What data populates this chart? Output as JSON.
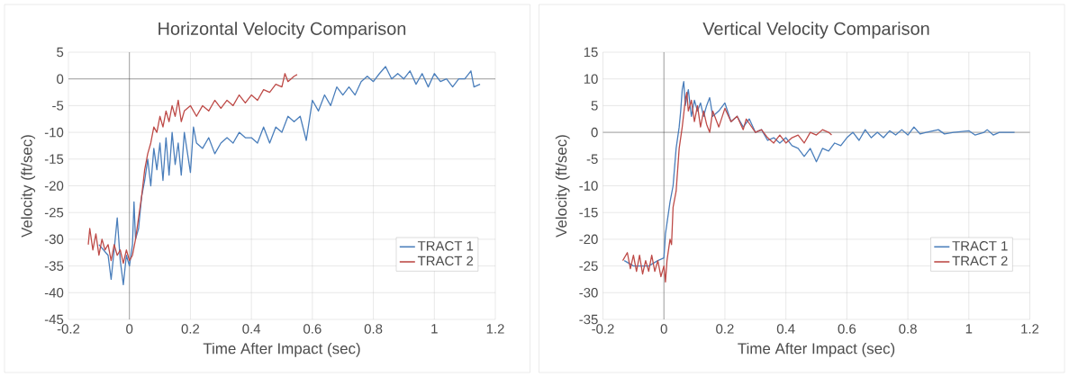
{
  "chart_data": [
    {
      "type": "line",
      "title": "Horizontal Velocity Comparison",
      "xlabel": "Time After Impact (sec)",
      "ylabel": "Velocity (ft/sec)",
      "xlim": [
        -0.2,
        1.2
      ],
      "ylim": [
        -45,
        5
      ],
      "xticks": [
        -0.2,
        0,
        0.2,
        0.4,
        0.6,
        0.8,
        1,
        1.2
      ],
      "yticks": [
        -45,
        -40,
        -35,
        -30,
        -25,
        -20,
        -15,
        -10,
        -5,
        0,
        5
      ],
      "grid": true,
      "legend": "bottom right",
      "marker": "none",
      "line_style": "solid",
      "series": [
        {
          "name": "TRACT 1",
          "color": "#4a7ebb",
          "x": [
            -0.1,
            -0.07,
            -0.06,
            -0.05,
            -0.04,
            -0.03,
            -0.02,
            -0.01,
            0,
            0.01,
            0.015,
            0.02,
            0.03,
            0.04,
            0.05,
            0.06,
            0.07,
            0.08,
            0.09,
            0.1,
            0.11,
            0.12,
            0.13,
            0.14,
            0.15,
            0.16,
            0.17,
            0.18,
            0.2,
            0.21,
            0.22,
            0.24,
            0.26,
            0.28,
            0.3,
            0.32,
            0.34,
            0.36,
            0.38,
            0.4,
            0.42,
            0.44,
            0.46,
            0.48,
            0.5,
            0.52,
            0.54,
            0.56,
            0.58,
            0.6,
            0.62,
            0.64,
            0.66,
            0.68,
            0.7,
            0.72,
            0.74,
            0.76,
            0.78,
            0.8,
            0.82,
            0.84,
            0.86,
            0.88,
            0.9,
            0.92,
            0.94,
            0.96,
            0.98,
            1.0,
            1.02,
            1.04,
            1.06,
            1.08,
            1.1,
            1.12,
            1.13,
            1.15
          ],
          "values": [
            -31,
            -33,
            -37.5,
            -32,
            -26,
            -34,
            -38.5,
            -33,
            -35,
            -31,
            -23,
            -30,
            -28,
            -22,
            -19,
            -15,
            -20,
            -13,
            -17,
            -12,
            -19,
            -11,
            -18,
            -10,
            -16,
            -12,
            -18,
            -10,
            -17.5,
            -9,
            -12,
            -13,
            -11,
            -14,
            -12,
            -11,
            -12,
            -10,
            -11,
            -11,
            -12,
            -9,
            -12,
            -9,
            -10,
            -7,
            -8,
            -7,
            -11.5,
            -4,
            -6,
            -3,
            -5,
            -1.5,
            -3,
            -1.5,
            -3,
            -0.5,
            0.5,
            -0.5,
            1,
            2.3,
            0,
            1,
            0,
            1.5,
            -1,
            1,
            -1.5,
            1,
            -0.5,
            0,
            -1.5,
            0,
            0,
            1.5,
            -1.5,
            -1
          ]
        },
        {
          "name": "TRACT 2",
          "color": "#be4b48",
          "x": [
            -0.135,
            -0.13,
            -0.12,
            -0.11,
            -0.1,
            -0.09,
            -0.08,
            -0.07,
            -0.06,
            -0.05,
            -0.04,
            -0.03,
            -0.02,
            -0.01,
            0,
            0.01,
            0.02,
            0.03,
            0.04,
            0.05,
            0.06,
            0.07,
            0.08,
            0.09,
            0.1,
            0.11,
            0.12,
            0.13,
            0.14,
            0.15,
            0.16,
            0.17,
            0.18,
            0.2,
            0.22,
            0.24,
            0.26,
            0.28,
            0.3,
            0.32,
            0.34,
            0.36,
            0.38,
            0.4,
            0.42,
            0.44,
            0.46,
            0.48,
            0.5,
            0.51,
            0.52,
            0.54,
            0.55
          ],
          "values": [
            -31,
            -28,
            -32,
            -29,
            -33,
            -30,
            -32,
            -31,
            -34,
            -31,
            -33,
            -32,
            -34.5,
            -32,
            -34,
            -33,
            -30,
            -26,
            -22,
            -17,
            -14,
            -12,
            -9,
            -10,
            -7,
            -9,
            -6,
            -8,
            -5,
            -7,
            -4,
            -8,
            -6,
            -5,
            -7,
            -5,
            -6,
            -4,
            -5.5,
            -4,
            -5,
            -3,
            -4.5,
            -3,
            -4,
            -2,
            -2.5,
            -1,
            -1.5,
            1,
            -0.5,
            0.5,
            0.8
          ]
        }
      ]
    },
    {
      "type": "line",
      "title": "Vertical Velocity Comparison",
      "xlabel": "Time After Impact (sec)",
      "ylabel": "Velocity (ft/sec)",
      "xlim": [
        -0.2,
        1.2
      ],
      "ylim": [
        -35,
        15
      ],
      "xticks": [
        -0.2,
        0,
        0.2,
        0.4,
        0.6,
        0.8,
        1,
        1.2
      ],
      "yticks": [
        -35,
        -30,
        -25,
        -20,
        -15,
        -10,
        -5,
        0,
        5,
        10,
        15
      ],
      "grid": true,
      "legend": "bottom right",
      "marker": "none",
      "line_style": "solid",
      "series": [
        {
          "name": "TRACT 1",
          "color": "#4a7ebb",
          "x": [
            -0.13,
            -0.1,
            -0.05,
            -0.02,
            0,
            0.005,
            0.01,
            0.02,
            0.03,
            0.04,
            0.05,
            0.055,
            0.06,
            0.065,
            0.07,
            0.08,
            0.09,
            0.1,
            0.11,
            0.12,
            0.13,
            0.14,
            0.15,
            0.16,
            0.18,
            0.2,
            0.22,
            0.24,
            0.26,
            0.28,
            0.3,
            0.32,
            0.34,
            0.36,
            0.38,
            0.4,
            0.42,
            0.44,
            0.46,
            0.48,
            0.5,
            0.52,
            0.54,
            0.56,
            0.58,
            0.6,
            0.62,
            0.64,
            0.66,
            0.68,
            0.7,
            0.72,
            0.74,
            0.76,
            0.78,
            0.8,
            0.82,
            0.84,
            0.86,
            0.9,
            0.92,
            0.95,
            1.0,
            1.02,
            1.05,
            1.06,
            1.08,
            1.1,
            1.15
          ],
          "values": [
            -24,
            -25,
            -25,
            -24,
            -23.5,
            -19,
            -17,
            -13,
            -10,
            -3,
            1,
            4,
            8,
            9.5,
            5,
            8,
            3,
            6,
            4,
            5.5,
            3,
            5,
            6.5,
            3,
            4,
            5.5,
            2,
            3,
            1,
            2.5,
            0,
            0.5,
            -1.5,
            -1,
            -2,
            -1,
            -2.5,
            -3,
            -4.5,
            -3,
            -5.5,
            -3,
            -3.5,
            -2,
            -2.5,
            -1,
            0,
            -1.5,
            0.5,
            -1,
            0,
            -1,
            0.3,
            -0.5,
            0.5,
            -0.5,
            1,
            -0.3,
            0,
            0.5,
            -0.3,
            0,
            0.3,
            -0.5,
            0,
            0.5,
            -0.5,
            0,
            0
          ]
        },
        {
          "name": "TRACT 2",
          "color": "#be4b48",
          "x": [
            -0.135,
            -0.12,
            -0.11,
            -0.1,
            -0.09,
            -0.08,
            -0.07,
            -0.06,
            -0.05,
            -0.04,
            -0.03,
            -0.02,
            -0.01,
            0,
            0.005,
            0.01,
            0.02,
            0.025,
            0.03,
            0.04,
            0.05,
            0.06,
            0.07,
            0.075,
            0.08,
            0.09,
            0.1,
            0.11,
            0.12,
            0.13,
            0.14,
            0.15,
            0.16,
            0.18,
            0.2,
            0.22,
            0.24,
            0.26,
            0.27,
            0.3,
            0.32,
            0.34,
            0.36,
            0.38,
            0.4,
            0.42,
            0.44,
            0.46,
            0.48,
            0.5,
            0.52,
            0.54,
            0.55
          ],
          "values": [
            -24,
            -22.5,
            -25.5,
            -23,
            -26,
            -23,
            -26.5,
            -24,
            -26,
            -23,
            -26,
            -24,
            -27,
            -25,
            -28,
            -24,
            -20,
            -21,
            -14,
            -11,
            -3,
            1,
            6,
            7.5,
            4,
            6,
            2,
            5,
            1,
            4,
            1.5,
            0,
            4,
            1,
            4.5,
            2,
            3,
            0.5,
            2.5,
            0,
            0.5,
            -1,
            -2,
            -0.5,
            -2,
            -1,
            -0.5,
            -2,
            0,
            -0.5,
            0.5,
            0,
            -0.5
          ]
        }
      ]
    }
  ]
}
